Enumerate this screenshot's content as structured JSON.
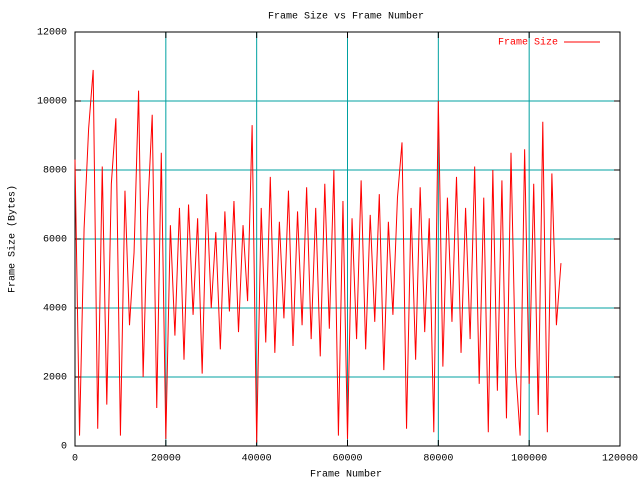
{
  "chart_data": {
    "type": "line",
    "title": "Frame Size vs Frame Number",
    "xlabel": "Frame Number",
    "ylabel": "Frame Size (Bytes)",
    "x": [
      0,
      1000,
      2000,
      3000,
      4000,
      5000,
      6000,
      7000,
      8000,
      9000,
      10000,
      11000,
      12000,
      13000,
      14000,
      15000,
      16000,
      17000,
      18000,
      19000,
      20000,
      21000,
      22000,
      23000,
      24000,
      25000,
      26000,
      27000,
      28000,
      29000,
      30000,
      31000,
      32000,
      33000,
      34000,
      35000,
      36000,
      37000,
      38000,
      39000,
      40000,
      41000,
      42000,
      43000,
      44000,
      45000,
      46000,
      47000,
      48000,
      49000,
      50000,
      51000,
      52000,
      53000,
      54000,
      55000,
      56000,
      57000,
      58000,
      59000,
      60000,
      61000,
      62000,
      63000,
      64000,
      65000,
      66000,
      67000,
      68000,
      69000,
      70000,
      71000,
      72000,
      73000,
      74000,
      75000,
      76000,
      77000,
      78000,
      79000,
      80000,
      81000,
      82000,
      83000,
      84000,
      85000,
      86000,
      87000,
      88000,
      89000,
      90000,
      91000,
      92000,
      93000,
      94000,
      95000,
      96000,
      97000,
      98000,
      99000,
      100000,
      101000,
      102000,
      103000,
      104000,
      105000,
      106000,
      107000
    ],
    "series": [
      {
        "name": "Frame Size",
        "color": "#ff0000",
        "values": [
          8300,
          300,
          6300,
          9200,
          10900,
          500,
          8100,
          1200,
          7600,
          9500,
          300,
          7400,
          3500,
          5600,
          10300,
          2000,
          6800,
          9600,
          1100,
          8500,
          200,
          6400,
          3200,
          6900,
          2500,
          7000,
          3800,
          6600,
          2100,
          7300,
          4000,
          6200,
          2800,
          6800,
          3900,
          7100,
          3300,
          6400,
          4200,
          9300,
          100,
          6900,
          3000,
          7800,
          2700,
          6500,
          3700,
          7400,
          2900,
          6800,
          3500,
          7500,
          3100,
          6900,
          2600,
          7600,
          3400,
          8000,
          300,
          7100,
          200,
          6600,
          3100,
          7700,
          2800,
          6700,
          3600,
          7300,
          2200,
          6500,
          3800,
          7200,
          8800,
          500,
          6900,
          2500,
          7500,
          3300,
          6600,
          400,
          10000,
          2300,
          7200,
          3600,
          7800,
          2700,
          6900,
          3100,
          8100,
          1800,
          7200,
          400,
          8000,
          1600,
          7700,
          800,
          8500,
          2300,
          300,
          8600,
          1800,
          7600,
          900,
          9400,
          400,
          7900,
          3500,
          5300
        ]
      }
    ],
    "xlim": [
      0,
      120000
    ],
    "xticks": [
      0,
      20000,
      40000,
      60000,
      80000,
      100000,
      120000
    ],
    "ylim": [
      0,
      12000
    ],
    "yticks": [
      0,
      2000,
      4000,
      6000,
      8000,
      10000,
      12000
    ],
    "grid": true,
    "legend": "top-right"
  }
}
